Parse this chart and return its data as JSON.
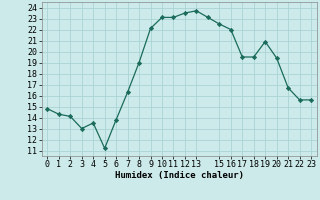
{
  "x": [
    0,
    1,
    2,
    3,
    4,
    5,
    6,
    7,
    8,
    9,
    10,
    11,
    12,
    13,
    14,
    15,
    16,
    17,
    18,
    19,
    20,
    21,
    22,
    23
  ],
  "y": [
    14.8,
    14.3,
    14.1,
    13.0,
    13.5,
    11.2,
    13.8,
    16.3,
    19.0,
    22.1,
    23.1,
    23.1,
    23.5,
    23.7,
    23.1,
    22.5,
    22.0,
    19.5,
    19.5,
    20.9,
    19.4,
    16.7,
    15.6,
    15.6
  ],
  "line_color": "#1a6b5a",
  "marker": "D",
  "marker_size": 2.2,
  "bg_color": "#cceaea",
  "grid_color": "#aad4d4",
  "xlabel": "Humidex (Indice chaleur)",
  "xlim": [
    -0.5,
    23.5
  ],
  "ylim": [
    10.5,
    24.5
  ],
  "yticks": [
    11,
    12,
    13,
    14,
    15,
    16,
    17,
    18,
    19,
    20,
    21,
    22,
    23,
    24
  ],
  "xticks": [
    0,
    1,
    2,
    3,
    4,
    5,
    6,
    7,
    8,
    9,
    10,
    11,
    12,
    13,
    15,
    16,
    17,
    18,
    19,
    20,
    21,
    22,
    23
  ],
  "xtick_labels": [
    "0",
    "1",
    "2",
    "3",
    "4",
    "5",
    "6",
    "7",
    "8",
    "9",
    "10",
    "11",
    "12",
    "13",
    "15",
    "16",
    "17",
    "18",
    "19",
    "20",
    "21",
    "22",
    "23"
  ],
  "label_fontsize": 6.5,
  "tick_fontsize": 6.0
}
